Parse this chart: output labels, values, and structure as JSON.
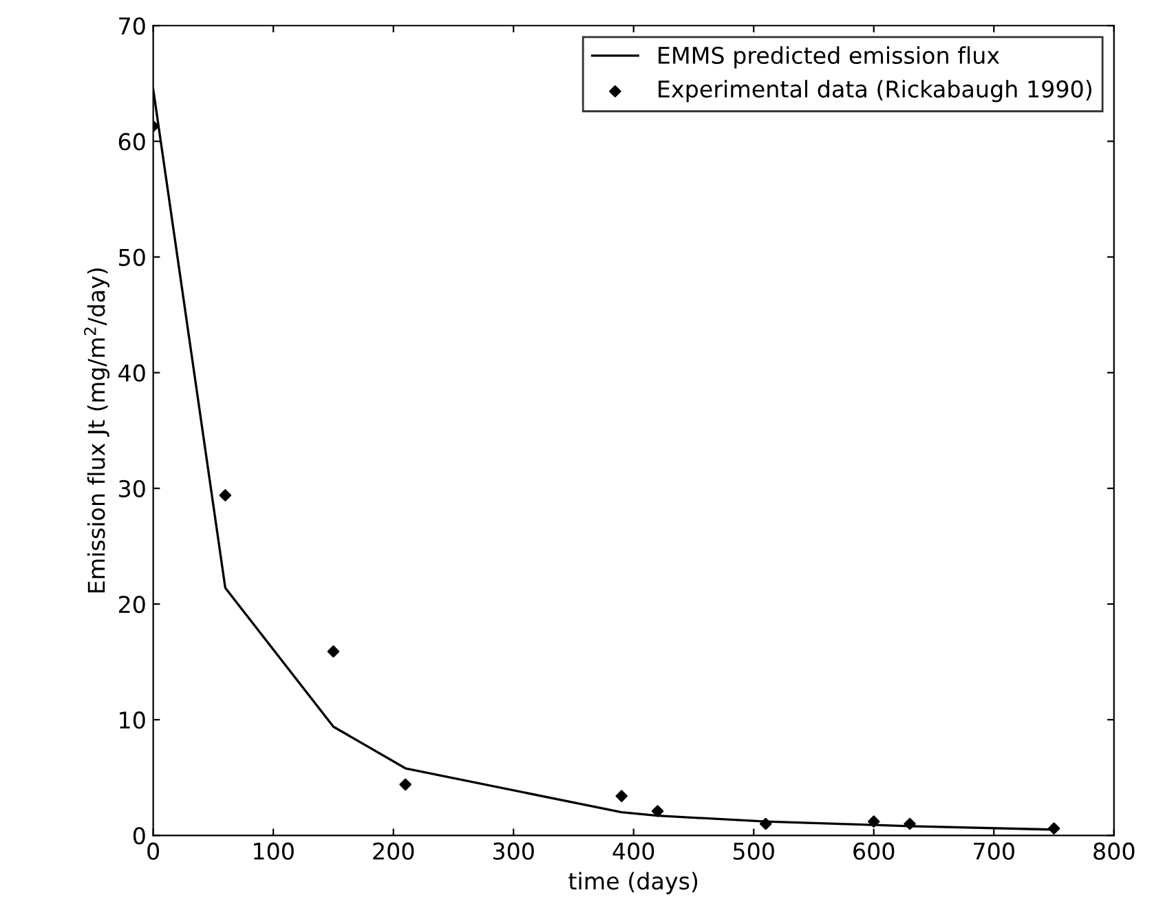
{
  "chart_data": {
    "type": "line",
    "xlabel": "time (days)",
    "ylabel": "Emission flux Jt (mg/m$^{2}$/day)",
    "xlim": [
      0,
      800
    ],
    "ylim": [
      0,
      70
    ],
    "xticks": [
      0,
      100,
      200,
      300,
      400,
      500,
      600,
      700,
      800
    ],
    "yticks": [
      0,
      10,
      20,
      30,
      40,
      50,
      60,
      70
    ],
    "grid": false,
    "legend": "top right",
    "series": [
      {
        "name": "EMMS predicted emission flux",
        "color": "#000000",
        "marker": "none",
        "line_style": "solid",
        "x": [
          0,
          60,
          150,
          210,
          390,
          420,
          510,
          600,
          630,
          750
        ],
        "values": [
          64.5,
          21.4,
          9.4,
          5.8,
          2.0,
          1.7,
          1.2,
          0.9,
          0.8,
          0.5
        ]
      },
      {
        "name": "Experimental data (Rickabaugh 1990)",
        "type": "scatter",
        "color": "#000000",
        "marker": "diamond",
        "x": [
          0,
          60,
          150,
          210,
          390,
          420,
          510,
          600,
          630,
          750
        ],
        "values": [
          61.3,
          29.4,
          15.9,
          4.4,
          3.4,
          2.1,
          1.0,
          1.2,
          1.0,
          0.6
        ]
      }
    ]
  }
}
